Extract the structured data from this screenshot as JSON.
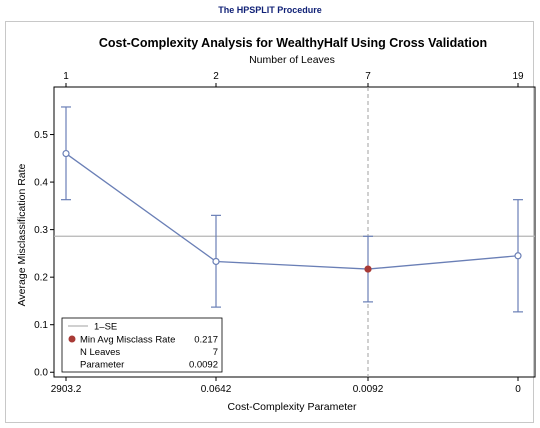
{
  "procedure_title": "The HPSPLIT Procedure",
  "chart_data": {
    "type": "line",
    "title": "Cost-Complexity Analysis for WealthyHalf Using Cross Validation",
    "xlabel": "Cost-Complexity Parameter",
    "ylabel": "Average Misclassification Rate",
    "x2label": "Number of Leaves",
    "categories": [
      "2903.2",
      "0.0642",
      "0.0092",
      "0"
    ],
    "leaves": [
      "1",
      "2",
      "7",
      "19"
    ],
    "series": [
      {
        "values": [
          0.46,
          0.233,
          0.217,
          0.245
        ],
        "lower": [
          0.363,
          0.137,
          0.148,
          0.127
        ],
        "upper": [
          0.558,
          0.33,
          0.286,
          0.363
        ],
        "color": "#6a7fb6"
      }
    ],
    "one_se": 0.286,
    "min_index": 2,
    "ylim": [
      -0.01,
      0.6
    ],
    "yticks": [
      "0.0",
      "0.1",
      "0.2",
      "0.3",
      "0.4",
      "0.5"
    ],
    "colors": {
      "min_marker": "#a83a36",
      "line": "#6a7fb6",
      "reference": "#b4b4b4",
      "vline": "#a0a0a0"
    },
    "legend": {
      "placement": "bottom-left",
      "one_se_label": "1–SE",
      "min_label": "Min Avg Misclass Rate",
      "min_value": "0.217",
      "n_leaves_label": "N Leaves",
      "n_leaves_value": "7",
      "parameter_label": "Parameter",
      "parameter_value": "0.0092"
    }
  }
}
